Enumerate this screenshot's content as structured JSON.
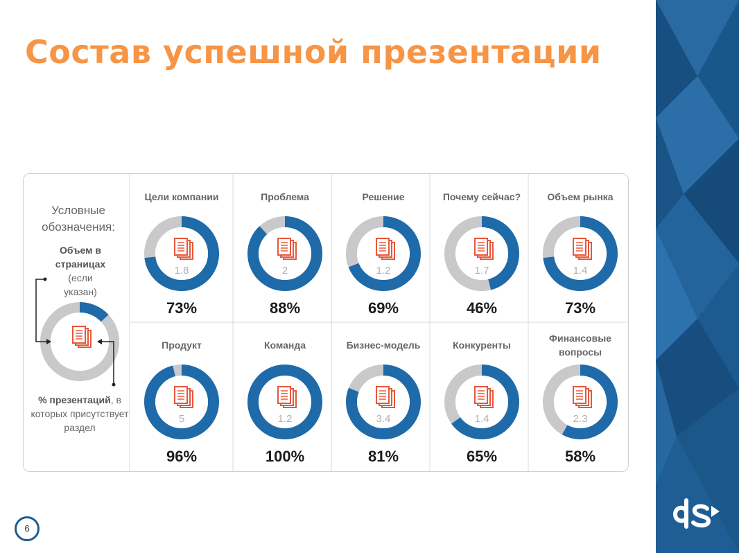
{
  "slide": {
    "title": "Состав успешной презентации",
    "page_number": "6",
    "brand": "ds",
    "accent_color": "#f79546",
    "brand_color": "#1e5c91"
  },
  "legend": {
    "title": "Условные обозначения:",
    "pages_label_bold": "Объем в страницах",
    "pages_label_rest": "(если указан)",
    "pct_label_bold": "% презентаций",
    "pct_label_rest": ", в которых присутствует раздел",
    "sample_share": 0.13
  },
  "sections": [
    {
      "label": "Цели компании",
      "pages": "1.8",
      "percent_text": "73%",
      "share": 0.73
    },
    {
      "label": "Проблема",
      "pages": "2",
      "percent_text": "88%",
      "share": 0.88
    },
    {
      "label": "Решение",
      "pages": "1.2",
      "percent_text": "69%",
      "share": 0.69
    },
    {
      "label": "Почему сейчас?",
      "pages": "1.7",
      "percent_text": "46%",
      "share": 0.46
    },
    {
      "label": "Объем рынка",
      "pages": "1.4",
      "percent_text": "73%",
      "share": 0.73
    },
    {
      "label": "Продукт",
      "pages": "5",
      "percent_text": "96%",
      "share": 0.96
    },
    {
      "label": "Команда",
      "pages": "1.2",
      "percent_text": "100%",
      "share": 1.0
    },
    {
      "label": "Бизнес-модель",
      "pages": "3.4",
      "percent_text": "81%",
      "share": 0.81
    },
    {
      "label": "Конкуренты",
      "pages": "1.4",
      "percent_text": "65%",
      "share": 0.65
    },
    {
      "label": "Финансовые вопросы",
      "pages": "2.3",
      "percent_text": "58%",
      "share": 0.58
    }
  ]
}
